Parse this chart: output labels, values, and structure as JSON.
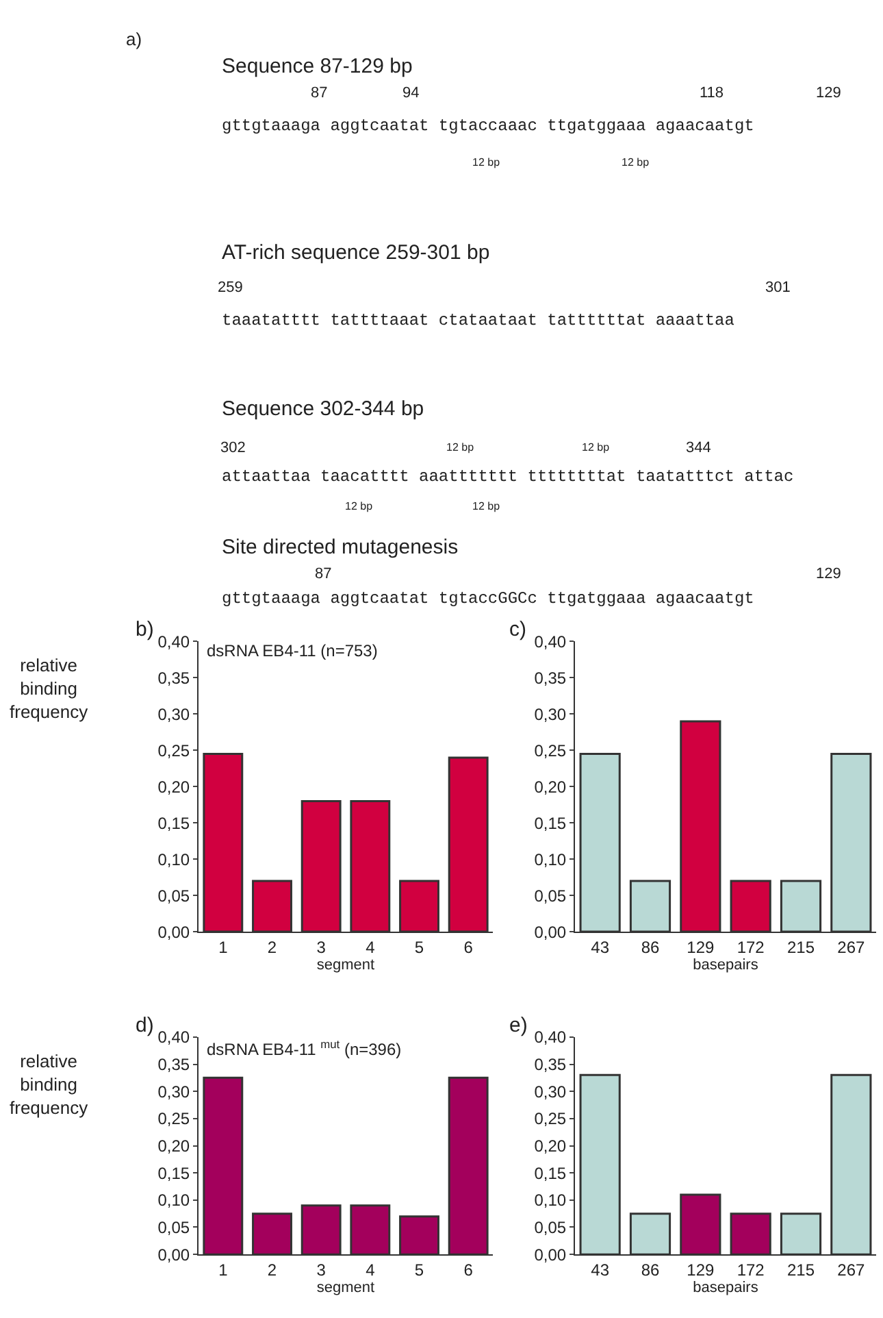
{
  "chart_data": [
    {
      "type": "other",
      "annotations": [
        "a)",
        "Sequence 87-129 bp",
        "87",
        "94",
        "118",
        "129",
        "gttgtaaaga aggtcaatat tgtaccaaac ttgatggaaa agaacaatgt",
        "12 bp",
        "12 bp",
        "AT-rich sequence 259-301 bp",
        "259",
        "301",
        "taaatatttt tattttaaat ctataataat tattttttat aaaattaa",
        "Sequence 302-344 bp",
        "302",
        "12 bp",
        "12 bp",
        "344",
        "attaattaa taacatttt aaattttttt ttttttttat taatatttct attac",
        "12 bp",
        "12 bp",
        "Site directed mutagenesis",
        "87",
        "129",
        "gttgtaaaga aggtcaatat tgtaccGGCc ttgatggaaa agaacaatgt"
      ]
    },
    {
      "type": "bar",
      "title": "b)",
      "ylabel": "relative binding frequency",
      "xlabel": "segment",
      "annotations": [
        "dsRNA EB4-11 (n=753)"
      ],
      "categories": [
        "1",
        "2",
        "3",
        "4",
        "5",
        "6"
      ],
      "values": [
        0.245,
        0.07,
        0.18,
        0.18,
        0.07,
        0.24
      ],
      "colors": [
        "#d10040",
        "#d10040",
        "#d10040",
        "#d10040",
        "#d10040",
        "#d10040"
      ],
      "ylim": [
        0,
        0.4
      ],
      "yticks": [
        {
          "value": 0,
          "label": "0,00"
        },
        {
          "value": 0.05,
          "label": "0,05"
        },
        {
          "value": 0.1,
          "label": "0,10"
        },
        {
          "value": 0.15,
          "label": "0,15"
        },
        {
          "value": 0.2,
          "label": "0,20"
        },
        {
          "value": 0.25,
          "label": "0,25"
        },
        {
          "value": 0.3,
          "label": "0,30"
        },
        {
          "value": 0.35,
          "label": "0,35"
        },
        {
          "value": 0.4,
          "label": "0,40"
        }
      ]
    },
    {
      "type": "bar",
      "title": "c)",
      "xlabel": "basepairs",
      "categories": [
        "43",
        "86",
        "129",
        "172",
        "215",
        "267"
      ],
      "values": [
        0.245,
        0.07,
        0.29,
        0.07,
        0.07,
        0.245
      ],
      "colors": [
        "#b9d9d5",
        "#b9d9d5",
        "#d10040",
        "#d10040",
        "#b9d9d5",
        "#b9d9d5"
      ],
      "ylim": [
        0,
        0.4
      ],
      "yticks": [
        {
          "value": 0,
          "label": "0,00"
        },
        {
          "value": 0.05,
          "label": "0,05"
        },
        {
          "value": 0.1,
          "label": "0,10"
        },
        {
          "value": 0.15,
          "label": "0,15"
        },
        {
          "value": 0.2,
          "label": "0,20"
        },
        {
          "value": 0.25,
          "label": "0,25"
        },
        {
          "value": 0.3,
          "label": "0,30"
        },
        {
          "value": 0.35,
          "label": "0,35"
        },
        {
          "value": 0.4,
          "label": "0,40"
        }
      ]
    },
    {
      "type": "bar",
      "title": "d)",
      "ylabel": "relative binding frequency",
      "xlabel": "segment",
      "annotations": [
        "dsRNA EB4-11 $^{mut}$ (n=396)"
      ],
      "categories": [
        "1",
        "2",
        "3",
        "4",
        "5",
        "6"
      ],
      "values": [
        0.325,
        0.075,
        0.09,
        0.09,
        0.07,
        0.325
      ],
      "colors": [
        "#a3005c",
        "#a3005c",
        "#a3005c",
        "#a3005c",
        "#a3005c",
        "#a3005c"
      ],
      "ylim": [
        0,
        0.4
      ],
      "yticks": [
        {
          "value": 0,
          "label": "0,00"
        },
        {
          "value": 0.05,
          "label": "0,05"
        },
        {
          "value": 0.1,
          "label": "0,10"
        },
        {
          "value": 0.15,
          "label": "0,15"
        },
        {
          "value": 0.2,
          "label": "0,20"
        },
        {
          "value": 0.25,
          "label": "0,25"
        },
        {
          "value": 0.3,
          "label": "0,30"
        },
        {
          "value": 0.35,
          "label": "0,35"
        },
        {
          "value": 0.4,
          "label": "0,40"
        }
      ]
    },
    {
      "type": "bar",
      "title": "e)",
      "xlabel": "basepairs",
      "categories": [
        "43",
        "86",
        "129",
        "172",
        "215",
        "267"
      ],
      "values": [
        0.33,
        0.075,
        0.11,
        0.075,
        0.075,
        0.33
      ],
      "colors": [
        "#b9d9d5",
        "#b9d9d5",
        "#a3005c",
        "#a3005c",
        "#b9d9d5",
        "#b9d9d5"
      ],
      "ylim": [
        0,
        0.4
      ],
      "yticks": [
        {
          "value": 0,
          "label": "0,00"
        },
        {
          "value": 0.05,
          "label": "0,05"
        },
        {
          "value": 0.1,
          "label": "0,10"
        },
        {
          "value": 0.15,
          "label": "0,15"
        },
        {
          "value": 0.2,
          "label": "0,20"
        },
        {
          "value": 0.25,
          "label": "0,25"
        },
        {
          "value": 0.3,
          "label": "0,30"
        },
        {
          "value": 0.35,
          "label": "0,35"
        },
        {
          "value": 0.4,
          "label": "0,40"
        }
      ]
    }
  ]
}
